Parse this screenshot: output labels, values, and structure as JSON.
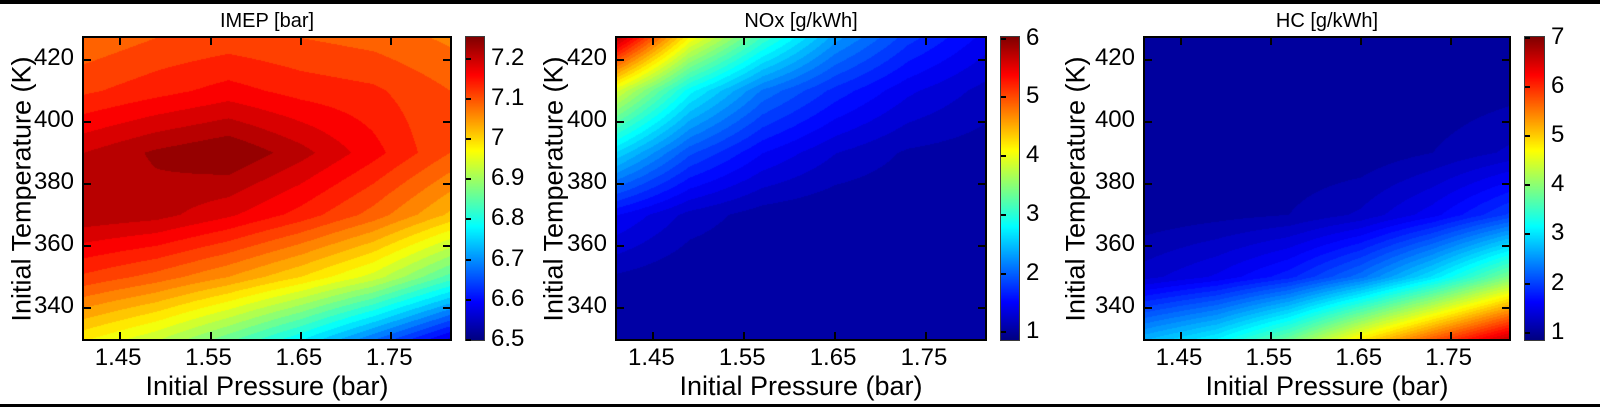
{
  "figure": {
    "background": "#ffffff",
    "border_color": "#000000",
    "text_color": "#000000",
    "colormap": "jet"
  },
  "chart_data": [
    {
      "id": "imep",
      "type": "heatmap",
      "title": "IMEP [bar]",
      "xlabel": "Initial Pressure (bar)",
      "ylabel": "Initial Temperature (K)",
      "xlim": [
        1.41,
        1.815
      ],
      "ylim": [
        330,
        427
      ],
      "x_ticks": [
        1.45,
        1.55,
        1.65,
        1.75
      ],
      "x_tick_labels": [
        "1.45",
        "1.55",
        "1.65",
        "1.75"
      ],
      "y_ticks": [
        340,
        360,
        380,
        400,
        420
      ],
      "y_tick_labels": [
        "340",
        "360",
        "380",
        "400",
        "420"
      ],
      "clim": [
        6.5,
        7.254
      ],
      "contour_step": 0.025,
      "colorbar_ticks": [
        6.5,
        6.6,
        6.7,
        6.8,
        6.9,
        7,
        7.1,
        7.2
      ],
      "colorbar_tick_labels": [
        "6.5",
        "6.6",
        "6.7",
        "6.8",
        "6.9",
        "7",
        "7.1",
        "7.2"
      ],
      "grid_x": [
        1.41,
        1.49,
        1.57,
        1.65,
        1.73,
        1.815
      ],
      "grid_y": [
        330,
        350,
        370,
        390,
        410,
        427
      ],
      "values": [
        [
          6.98,
          6.93,
          6.86,
          6.78,
          6.68,
          6.57
        ],
        [
          7.12,
          7.09,
          7.05,
          7.0,
          6.94,
          6.84
        ],
        [
          7.22,
          7.21,
          7.18,
          7.14,
          7.09,
          7.02
        ],
        [
          7.2,
          7.23,
          7.25,
          7.21,
          7.16,
          7.1
        ],
        [
          7.12,
          7.14,
          7.16,
          7.14,
          7.13,
          7.1
        ],
        [
          7.08,
          7.1,
          7.11,
          7.1,
          7.09,
          7.07
        ]
      ]
    },
    {
      "id": "nox",
      "type": "heatmap",
      "title": "NOx [g/kWh]",
      "xlabel": "Initial Pressure (bar)",
      "ylabel": "Initial Temperature (K)",
      "xlim": [
        1.41,
        1.815
      ],
      "ylim": [
        330,
        427
      ],
      "x_ticks": [
        1.45,
        1.55,
        1.65,
        1.75
      ],
      "x_tick_labels": [
        "1.45",
        "1.55",
        "1.65",
        "1.75"
      ],
      "y_ticks": [
        340,
        360,
        380,
        400,
        420
      ],
      "y_tick_labels": [
        "340",
        "360",
        "380",
        "400",
        "420"
      ],
      "clim": [
        0.87,
        6.03
      ],
      "contour_step": 0.125,
      "colorbar_ticks": [
        1,
        2,
        3,
        4,
        5,
        6
      ],
      "colorbar_tick_labels": [
        "1",
        "2",
        "3",
        "4",
        "5",
        "6"
      ],
      "grid_x": [
        1.41,
        1.49,
        1.57,
        1.65,
        1.73,
        1.815
      ],
      "grid_y": [
        330,
        350,
        370,
        390,
        410,
        427
      ],
      "values": [
        [
          1.0,
          1.0,
          1.0,
          1.0,
          1.0,
          1.0
        ],
        [
          1.1,
          1.0,
          1.0,
          1.0,
          1.0,
          1.0
        ],
        [
          1.5,
          1.2,
          1.05,
          1.0,
          1.0,
          1.0
        ],
        [
          2.6,
          1.9,
          1.5,
          1.25,
          1.1,
          1.05
        ],
        [
          3.9,
          2.8,
          2.1,
          1.7,
          1.4,
          1.2
        ],
        [
          5.75,
          4.1,
          3.1,
          2.3,
          1.8,
          1.45
        ]
      ]
    },
    {
      "id": "hc",
      "type": "heatmap",
      "title": "HC [g/kWh]",
      "xlabel": "Initial Pressure (bar)",
      "ylabel": "Initial Temperature (K)",
      "xlim": [
        1.41,
        1.815
      ],
      "ylim": [
        330,
        427
      ],
      "x_ticks": [
        1.45,
        1.55,
        1.65,
        1.75
      ],
      "x_tick_labels": [
        "1.45",
        "1.55",
        "1.65",
        "1.75"
      ],
      "y_ticks": [
        340,
        360,
        380,
        400,
        420
      ],
      "y_tick_labels": [
        "340",
        "360",
        "380",
        "400",
        "420"
      ],
      "clim": [
        0.85,
        7.02
      ],
      "contour_step": 0.125,
      "colorbar_ticks": [
        1,
        2,
        3,
        4,
        5,
        6,
        7
      ],
      "colorbar_tick_labels": [
        "1",
        "2",
        "3",
        "4",
        "5",
        "6",
        "7"
      ],
      "grid_x": [
        1.41,
        1.49,
        1.57,
        1.65,
        1.73,
        1.815
      ],
      "grid_y": [
        330,
        350,
        370,
        390,
        410,
        427
      ],
      "values": [
        [
          2.7,
          3.1,
          3.8,
          4.8,
          5.7,
          6.6
        ],
        [
          1.3,
          1.5,
          1.8,
          2.3,
          3.0,
          3.9
        ],
        [
          1.0,
          1.05,
          1.1,
          1.25,
          1.55,
          2.0
        ],
        [
          1.0,
          1.0,
          1.0,
          1.0,
          1.1,
          1.25
        ],
        [
          1.0,
          1.0,
          1.0,
          1.0,
          1.0,
          1.05
        ],
        [
          1.0,
          1.0,
          1.0,
          1.0,
          1.0,
          1.0
        ]
      ]
    }
  ]
}
